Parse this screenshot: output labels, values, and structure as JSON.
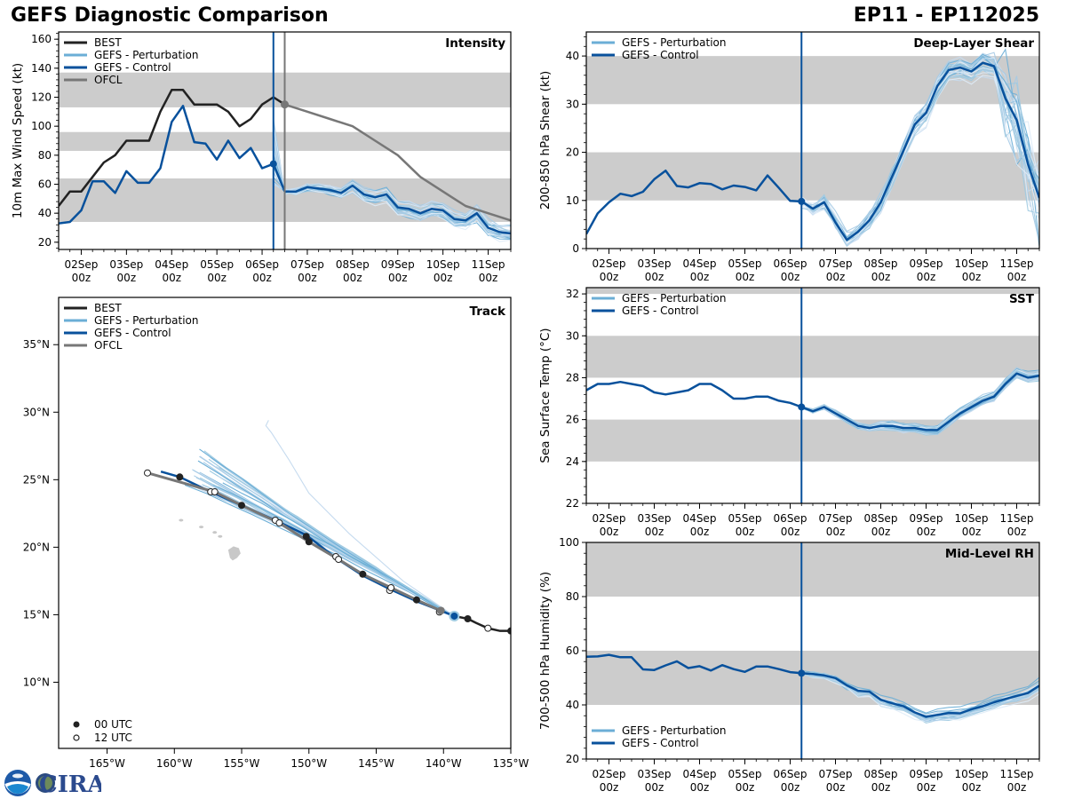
{
  "header": {
    "title": "GEFS Diagnostic Comparison",
    "storm": "EP11 - EP112025"
  },
  "colors": {
    "best": "#222222",
    "perturbation": "#6baed6",
    "control": "#08519c",
    "ofcl": "#777777",
    "band": "#cccccc"
  },
  "logo": {
    "text": "CIRA",
    "agency": "NOAA"
  },
  "time_axis": {
    "tick_labels": [
      "02Sep\n00z",
      "03Sep\n00z",
      "04Sep\n00z",
      "05Sep\n00z",
      "06Sep\n00z",
      "07Sep\n00z",
      "08Sep\n00z",
      "09Sep\n00z",
      "10Sep\n00z",
      "11Sep\n00z"
    ],
    "range_days": [
      1.5,
      11.5
    ],
    "init_day": 6.25,
    "ofcl_init_day": 6.5
  },
  "chart_data": [
    {
      "id": "intensity",
      "type": "line",
      "title": "Intensity",
      "ylabel": "10m Max Wind Speed (kt)",
      "ylim": [
        15,
        165
      ],
      "yticks": [
        20,
        40,
        60,
        80,
        100,
        120,
        140,
        160
      ],
      "bands": [
        [
          34,
          64
        ],
        [
          83,
          96
        ],
        [
          113,
          137
        ]
      ],
      "legend": [
        "BEST",
        "GEFS - Perturbation",
        "GEFS - Control",
        "OFCL"
      ],
      "legend_position": "top-left",
      "series": [
        {
          "name": "BEST",
          "x": [
            1.5,
            1.75,
            2.0,
            2.25,
            2.5,
            2.75,
            3.0,
            3.25,
            3.5,
            3.75,
            4.0,
            4.25,
            4.5,
            4.75,
            5.0,
            5.25,
            5.5,
            5.75,
            6.0,
            6.25,
            6.5
          ],
          "values": [
            45,
            55,
            55,
            65,
            75,
            80,
            90,
            90,
            90,
            110,
            125,
            125,
            115,
            115,
            115,
            110,
            100,
            105,
            115,
            120,
            115
          ]
        },
        {
          "name": "GEFS - Control",
          "x": [
            1.5,
            1.75,
            2.0,
            2.25,
            2.5,
            2.75,
            3.0,
            3.25,
            3.5,
            3.75,
            4.0,
            4.25,
            4.5,
            4.75,
            5.0,
            5.25,
            5.5,
            5.75,
            6.0,
            6.25,
            6.5,
            6.75,
            7.0,
            7.25,
            7.5,
            7.75,
            8.0,
            8.25,
            8.5,
            8.75,
            9.0,
            9.25,
            9.5,
            9.75,
            10.0,
            10.25,
            10.5,
            10.75,
            11.0,
            11.25,
            11.5
          ],
          "values": [
            33,
            34,
            42,
            62,
            62,
            54,
            69,
            61,
            61,
            71,
            103,
            114,
            89,
            88,
            77,
            90,
            78,
            85,
            71,
            74,
            55,
            55,
            58,
            57,
            56,
            54,
            59,
            53,
            51,
            53,
            44,
            43,
            40,
            43,
            42,
            36,
            35,
            40,
            30,
            27,
            26
          ]
        },
        {
          "name": "OFCL",
          "x": [
            6.5,
            7.0,
            7.5,
            8.0,
            8.5,
            9.0,
            9.5,
            10.0,
            10.5,
            11.0,
            11.5
          ],
          "values": [
            115,
            110,
            105,
            100,
            90,
            80,
            65,
            55,
            45,
            40,
            35
          ]
        }
      ]
    },
    {
      "id": "shear",
      "type": "line",
      "title": "Deep-Layer Shear",
      "ylabel": "200-850 hPa Shear (kt)",
      "ylim": [
        0,
        45
      ],
      "yticks": [
        0,
        10,
        20,
        30,
        40
      ],
      "bands": [
        [
          10,
          20
        ],
        [
          30,
          40
        ]
      ],
      "legend": [
        "GEFS - Perturbation",
        "GEFS - Control"
      ],
      "legend_position": "top-left",
      "series": [
        {
          "name": "GEFS - Control",
          "x": [
            1.5,
            1.75,
            2.0,
            2.25,
            2.5,
            2.75,
            3.0,
            3.25,
            3.5,
            3.75,
            4.0,
            4.25,
            4.5,
            4.75,
            5.0,
            5.25,
            5.5,
            5.75,
            6.0,
            6.25,
            6.5,
            6.75,
            7.0,
            7.25,
            7.5,
            7.75,
            8.0,
            8.25,
            8.5,
            8.75,
            9.0,
            9.25,
            9.5,
            9.75,
            10.0,
            10.25,
            10.5,
            10.75,
            11.0,
            11.25,
            11.5
          ],
          "values": [
            3,
            7.3,
            9.6,
            11.4,
            10.9,
            11.8,
            14.4,
            16.2,
            13,
            12.7,
            13.6,
            13.4,
            12.3,
            13.1,
            12.8,
            12.1,
            15.2,
            12.6,
            9.9,
            9.8,
            8.3,
            9.6,
            5.4,
            1.8,
            3.5,
            5.9,
            9.6,
            15,
            20.3,
            25.8,
            28.2,
            33.8,
            37.1,
            37.6,
            36.8,
            38.6,
            37.9,
            31.2,
            26.7,
            17.5,
            10.5
          ]
        }
      ]
    },
    {
      "id": "sst",
      "type": "line",
      "title": "SST",
      "ylabel": "Sea Surface Temp (°C)",
      "ylim": [
        22,
        32.3
      ],
      "yticks": [
        22,
        24,
        26,
        28,
        30,
        32
      ],
      "bands": [
        [
          24,
          26
        ],
        [
          28,
          30
        ],
        [
          32,
          32.3
        ]
      ],
      "legend": [
        "GEFS - Perturbation",
        "GEFS - Control"
      ],
      "legend_position": "top-left",
      "series": [
        {
          "name": "GEFS - Control",
          "x": [
            1.5,
            1.75,
            2.0,
            2.25,
            2.5,
            2.75,
            3.0,
            3.25,
            3.5,
            3.75,
            4.0,
            4.25,
            4.5,
            4.75,
            5.0,
            5.25,
            5.5,
            5.75,
            6.0,
            6.25,
            6.5,
            6.75,
            7.0,
            7.25,
            7.5,
            7.75,
            8.0,
            8.25,
            8.5,
            8.75,
            9.0,
            9.25,
            9.5,
            9.75,
            10.0,
            10.25,
            10.5,
            10.75,
            11.0,
            11.25,
            11.5
          ],
          "values": [
            27.4,
            27.7,
            27.7,
            27.8,
            27.7,
            27.6,
            27.3,
            27.2,
            27.3,
            27.4,
            27.7,
            27.7,
            27.4,
            27.0,
            27.0,
            27.1,
            27.1,
            26.9,
            26.8,
            26.6,
            26.4,
            26.6,
            26.3,
            26.0,
            25.7,
            25.6,
            25.7,
            25.7,
            25.6,
            25.6,
            25.5,
            25.5,
            25.9,
            26.3,
            26.6,
            26.9,
            27.1,
            27.7,
            28.2,
            28.0,
            28.1
          ]
        }
      ]
    },
    {
      "id": "rh",
      "type": "line",
      "title": "Mid-Level RH",
      "ylabel": "700-500 hPa Humidity (%)",
      "ylim": [
        20,
        100
      ],
      "yticks": [
        20,
        40,
        60,
        80,
        100
      ],
      "bands": [
        [
          40,
          60
        ],
        [
          80,
          100
        ]
      ],
      "legend": [
        "GEFS - Perturbation",
        "GEFS - Control"
      ],
      "legend_position": "bottom-left",
      "series": [
        {
          "name": "GEFS - Control",
          "x": [
            1.5,
            1.75,
            2.0,
            2.25,
            2.5,
            2.75,
            3.0,
            3.25,
            3.5,
            3.75,
            4.0,
            4.25,
            4.5,
            4.75,
            5.0,
            5.25,
            5.5,
            5.75,
            6.0,
            6.25,
            6.5,
            6.75,
            7.0,
            7.25,
            7.5,
            7.75,
            8.0,
            8.25,
            8.5,
            8.75,
            9.0,
            9.25,
            9.5,
            9.75,
            10.0,
            10.25,
            10.5,
            10.75,
            11.0,
            11.25,
            11.5
          ],
          "values": [
            57.8,
            57.9,
            58.5,
            57.6,
            57.6,
            53.1,
            52.9,
            54.6,
            56.1,
            53.6,
            54.3,
            52.7,
            54.7,
            53.2,
            52.2,
            54.2,
            54.2,
            53.2,
            52.1,
            51.7,
            51.4,
            50.9,
            49.9,
            47.2,
            45.2,
            44.9,
            41.9,
            40.6,
            39.5,
            37.2,
            35.6,
            36.3,
            37.0,
            36.9,
            38.4,
            39.5,
            41.0,
            42.2,
            43.3,
            44.4,
            47.1
          ]
        }
      ]
    },
    {
      "id": "track",
      "type": "line",
      "title": "Track",
      "xlim_lon": [
        -168.6,
        -135
      ],
      "ylim_lat": [
        5.1,
        38.5
      ],
      "xticks": [
        "165°W",
        "160°W",
        "155°W",
        "150°W",
        "145°W",
        "140°W",
        "135°W"
      ],
      "xtick_values": [
        -165,
        -160,
        -155,
        -150,
        -145,
        -140,
        -135
      ],
      "yticks": [
        "10°N",
        "15°N",
        "20°N",
        "25°N",
        "30°N",
        "35°N"
      ],
      "ytick_values": [
        10,
        15,
        20,
        25,
        30,
        35
      ],
      "legend": [
        "BEST",
        "GEFS - Perturbation",
        "GEFS - Control",
        "OFCL"
      ],
      "legend_position": "top-left",
      "marker_legend": [
        "00 UTC",
        "12 UTC"
      ],
      "marker_legend_position": "bottom-left",
      "series": [
        {
          "name": "BEST",
          "lon": [
            -135.0,
            -135.8,
            -136.7,
            -137.6,
            -138.2,
            -139.2
          ],
          "lat": [
            13.8,
            13.8,
            14.0,
            14.4,
            14.7,
            14.9
          ],
          "markers": [
            "00",
            "",
            "12",
            "",
            "00",
            ""
          ]
        },
        {
          "name": "GEFS - Control",
          "lon": [
            -139.2,
            -142.0,
            -144.0,
            -146.0,
            -148.0,
            -150.2,
            -152.5,
            -155.0,
            -157.3,
            -159.6,
            -161.0
          ],
          "lat": [
            14.9,
            16.0,
            16.9,
            17.9,
            19.2,
            20.9,
            22.0,
            23.1,
            24.1,
            25.2,
            25.6
          ]
        },
        {
          "name": "OFCL",
          "lon": [
            -140.2,
            -142.0,
            -143.9,
            -146.0,
            -147.8,
            -150.0,
            -152.2,
            -155.0,
            -157.0,
            -162.0
          ],
          "lat": [
            15.3,
            16.1,
            17.0,
            18.0,
            19.1,
            20.4,
            21.8,
            23.1,
            24.1,
            25.5
          ],
          "markers": [
            "12",
            "00",
            "12",
            "00",
            "12",
            "00",
            "12",
            "00",
            "12",
            "12"
          ]
        }
      ],
      "control_markers": [
        {
          "lon": -144.0,
          "lat": 16.8,
          "t": "12"
        },
        {
          "lon": -148.0,
          "lat": 19.3,
          "t": "12"
        },
        {
          "lon": -150.2,
          "lat": 20.8,
          "t": "00"
        },
        {
          "lon": -152.5,
          "lat": 22.0,
          "t": "12"
        },
        {
          "lon": -157.3,
          "lat": 24.1,
          "t": "12"
        },
        {
          "lon": -159.6,
          "lat": 25.2,
          "t": "00"
        },
        {
          "lon": -140.3,
          "lat": 15.2,
          "t": "12"
        }
      ],
      "island": {
        "lon": -155.5,
        "lat": 19.6
      }
    }
  ]
}
